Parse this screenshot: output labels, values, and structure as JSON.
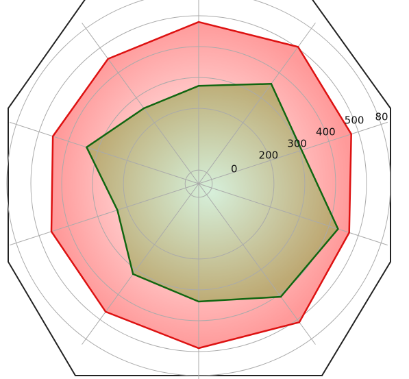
{
  "chart_data": {
    "type": "radar",
    "rlim": [
      -44,
      600
    ],
    "rticks": [
      0,
      200,
      300,
      400,
      500
    ],
    "cropped_tick_label": "80",
    "spokes": 10,
    "grid": true,
    "series": [
      {
        "color": "#dd1111",
        "fill": "#ff9a9a",
        "values": [
          480,
          504,
          476,
          469,
          511,
          489,
          469,
          458,
          453,
          456
        ]
      },
      {
        "color": "#116611",
        "fill": "#8fb060",
        "values": [
          273,
          356,
          307,
          431,
          409,
          338,
          318,
          233,
          338,
          258
        ]
      }
    ]
  }
}
